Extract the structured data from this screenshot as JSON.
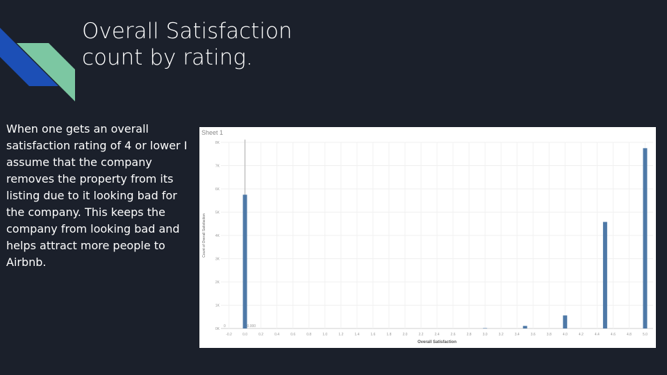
{
  "slide": {
    "title": "Overall Satisfaction\ncount by rating.",
    "body": "When one gets an overall satisfaction rating of 4 or lower I assume that the company removes the property from its listing due to it looking bad for the company. This keeps the company from looking bad and helps attract more people to Airbnb."
  },
  "colors": {
    "background": "#1b202b",
    "accent_blue": "#1c4fb6",
    "accent_green": "#7cc7a2",
    "bar": "#4e79a7"
  },
  "chart_data": {
    "type": "bar",
    "sheet_title": "Sheet 1",
    "xlabel": "Overall Satisfaction",
    "ylabel": "Count of Overall Satisfaction",
    "xlim": [
      -0.3,
      5.1
    ],
    "ylim": [
      0,
      8000
    ],
    "x_ticks": [
      "-0.2",
      "0.0",
      "0.2",
      "0.4",
      "0.6",
      "0.8",
      "1.0",
      "1.2",
      "1.4",
      "1.6",
      "1.8",
      "2.0",
      "2.2",
      "2.4",
      "2.6",
      "2.8",
      "3.0",
      "3.2",
      "3.4",
      "3.6",
      "3.8",
      "4.0",
      "4.2",
      "4.4",
      "4.6",
      "4.8",
      "5.0"
    ],
    "y_ticks": [
      "0K",
      "1K",
      "2K",
      "3K",
      "4K",
      "5K",
      "6K",
      "7K",
      "8K"
    ],
    "reference_line": {
      "x": 0.0,
      "label": "0.000"
    },
    "zero_label": "0",
    "x": [
      0.0,
      3.0,
      3.5,
      4.0,
      4.5,
      5.0
    ],
    "values": [
      5750,
      15,
      110,
      560,
      4580,
      7750
    ],
    "grid": true
  }
}
